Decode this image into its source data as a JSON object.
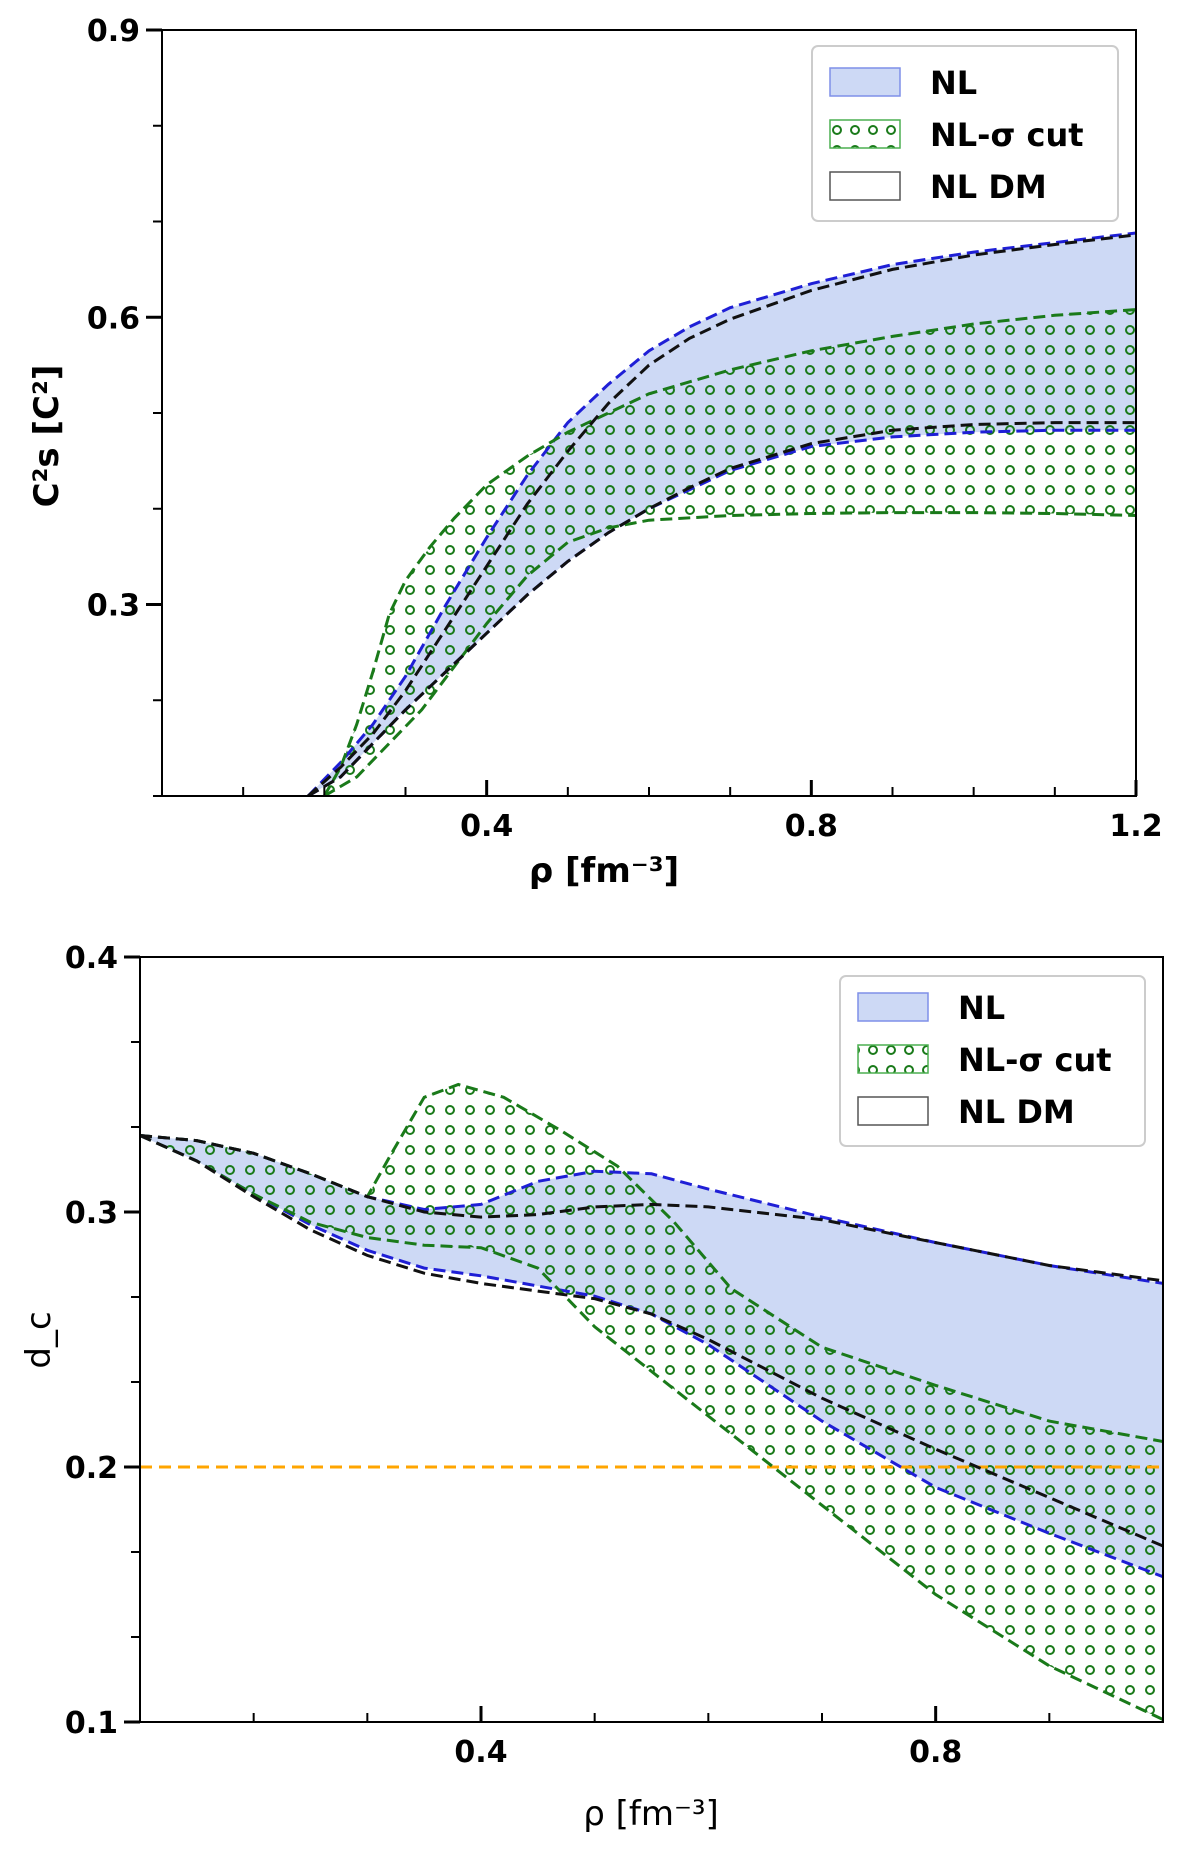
{
  "chart_data": [
    {
      "type": "area",
      "xlabel": "ρ [fm⁻³]",
      "ylabel": "C²s [C²]",
      "xlim": [
        0.0,
        1.2
      ],
      "ylim": [
        0.1,
        0.9
      ],
      "xticks": [
        {
          "v": 0.4,
          "label": "0.4"
        },
        {
          "v": 0.8,
          "label": "0.8"
        },
        {
          "v": 1.2,
          "label": "1.2"
        }
      ],
      "yticks": [
        {
          "v": 0.3,
          "label": "0.3"
        },
        {
          "v": 0.6,
          "label": "0.6"
        },
        {
          "v": 0.9,
          "label": "0.9"
        }
      ],
      "legend": [
        "NL",
        "NL-σ cut",
        "NL DM"
      ],
      "legend_position": "top-right",
      "series": [
        {
          "name": "NL",
          "upper": [
            [
              0.18,
              0.1
            ],
            [
              0.22,
              0.135
            ],
            [
              0.26,
              0.175
            ],
            [
              0.3,
              0.225
            ],
            [
              0.35,
              0.3
            ],
            [
              0.4,
              0.37
            ],
            [
              0.45,
              0.435
            ],
            [
              0.5,
              0.49
            ],
            [
              0.55,
              0.53
            ],
            [
              0.6,
              0.565
            ],
            [
              0.65,
              0.59
            ],
            [
              0.7,
              0.61
            ],
            [
              0.8,
              0.635
            ],
            [
              0.9,
              0.655
            ],
            [
              1.0,
              0.668
            ],
            [
              1.1,
              0.678
            ],
            [
              1.2,
              0.688
            ]
          ],
          "lower": [
            [
              0.18,
              0.1
            ],
            [
              0.22,
              0.12
            ],
            [
              0.26,
              0.155
            ],
            [
              0.3,
              0.19
            ],
            [
              0.35,
              0.23
            ],
            [
              0.4,
              0.27
            ],
            [
              0.45,
              0.31
            ],
            [
              0.5,
              0.345
            ],
            [
              0.55,
              0.375
            ],
            [
              0.6,
              0.4
            ],
            [
              0.65,
              0.42
            ],
            [
              0.7,
              0.44
            ],
            [
              0.8,
              0.465
            ],
            [
              0.9,
              0.475
            ],
            [
              1.0,
              0.48
            ],
            [
              1.1,
              0.482
            ],
            [
              1.2,
              0.482
            ]
          ]
        },
        {
          "name": "NL-σ cut",
          "upper": [
            [
              0.2,
              0.1
            ],
            [
              0.22,
              0.13
            ],
            [
              0.24,
              0.175
            ],
            [
              0.26,
              0.23
            ],
            [
              0.28,
              0.29
            ],
            [
              0.3,
              0.325
            ],
            [
              0.33,
              0.36
            ],
            [
              0.36,
              0.39
            ],
            [
              0.4,
              0.425
            ],
            [
              0.45,
              0.455
            ],
            [
              0.5,
              0.48
            ],
            [
              0.55,
              0.5
            ],
            [
              0.6,
              0.52
            ],
            [
              0.7,
              0.545
            ],
            [
              0.8,
              0.565
            ],
            [
              0.9,
              0.58
            ],
            [
              1.0,
              0.593
            ],
            [
              1.1,
              0.602
            ],
            [
              1.2,
              0.608
            ]
          ],
          "lower": [
            [
              0.2,
              0.1
            ],
            [
              0.24,
              0.12
            ],
            [
              0.28,
              0.155
            ],
            [
              0.32,
              0.19
            ],
            [
              0.36,
              0.235
            ],
            [
              0.4,
              0.28
            ],
            [
              0.45,
              0.33
            ],
            [
              0.5,
              0.365
            ],
            [
              0.55,
              0.38
            ],
            [
              0.6,
              0.388
            ],
            [
              0.7,
              0.393
            ],
            [
              0.8,
              0.395
            ],
            [
              0.9,
              0.396
            ],
            [
              1.0,
              0.396
            ],
            [
              1.1,
              0.395
            ],
            [
              1.2,
              0.393
            ]
          ]
        },
        {
          "name": "NL DM",
          "upper": [
            [
              0.18,
              0.1
            ],
            [
              0.22,
              0.13
            ],
            [
              0.26,
              0.165
            ],
            [
              0.3,
              0.21
            ],
            [
              0.35,
              0.275
            ],
            [
              0.4,
              0.34
            ],
            [
              0.45,
              0.405
            ],
            [
              0.5,
              0.46
            ],
            [
              0.55,
              0.51
            ],
            [
              0.6,
              0.55
            ],
            [
              0.65,
              0.578
            ],
            [
              0.7,
              0.598
            ],
            [
              0.8,
              0.628
            ],
            [
              0.9,
              0.65
            ],
            [
              1.0,
              0.665
            ],
            [
              1.1,
              0.676
            ],
            [
              1.2,
              0.686
            ]
          ],
          "lower": [
            [
              0.18,
              0.1
            ],
            [
              0.22,
              0.12
            ],
            [
              0.26,
              0.155
            ],
            [
              0.3,
              0.19
            ],
            [
              0.35,
              0.23
            ],
            [
              0.4,
              0.27
            ],
            [
              0.45,
              0.31
            ],
            [
              0.5,
              0.345
            ],
            [
              0.55,
              0.375
            ],
            [
              0.6,
              0.4
            ],
            [
              0.65,
              0.422
            ],
            [
              0.7,
              0.442
            ],
            [
              0.8,
              0.468
            ],
            [
              0.9,
              0.482
            ],
            [
              1.0,
              0.488
            ],
            [
              1.1,
              0.49
            ],
            [
              1.2,
              0.49
            ]
          ]
        }
      ]
    },
    {
      "type": "area",
      "xlabel": "ρ [fm⁻³]",
      "ylabel": "d_c",
      "xlim": [
        0.1,
        1.0
      ],
      "ylim": [
        0.1,
        0.4
      ],
      "xticks": [
        {
          "v": 0.4,
          "label": "0.4"
        },
        {
          "v": 0.8,
          "label": "0.8"
        }
      ],
      "yticks": [
        {
          "v": 0.1,
          "label": "0.1"
        },
        {
          "v": 0.2,
          "label": "0.2"
        },
        {
          "v": 0.3,
          "label": "0.3"
        },
        {
          "v": 0.4,
          "label": "0.4"
        }
      ],
      "legend": [
        "NL",
        "NL-σ cut",
        "NL DM"
      ],
      "legend_position": "top-right",
      "reference_line": {
        "y": 0.2,
        "color": "#ffa500"
      },
      "series": [
        {
          "name": "NL",
          "upper": [
            [
              0.1,
              0.33
            ],
            [
              0.15,
              0.328
            ],
            [
              0.2,
              0.323
            ],
            [
              0.25,
              0.315
            ],
            [
              0.3,
              0.306
            ],
            [
              0.35,
              0.301
            ],
            [
              0.4,
              0.303
            ],
            [
              0.45,
              0.312
            ],
            [
              0.5,
              0.316
            ],
            [
              0.55,
              0.315
            ],
            [
              0.6,
              0.309
            ],
            [
              0.7,
              0.298
            ],
            [
              0.8,
              0.288
            ],
            [
              0.9,
              0.279
            ],
            [
              1.0,
              0.272
            ]
          ],
          "lower": [
            [
              0.1,
              0.33
            ],
            [
              0.15,
              0.32
            ],
            [
              0.2,
              0.307
            ],
            [
              0.25,
              0.295
            ],
            [
              0.3,
              0.285
            ],
            [
              0.35,
              0.278
            ],
            [
              0.4,
              0.275
            ],
            [
              0.45,
              0.271
            ],
            [
              0.5,
              0.267
            ],
            [
              0.55,
              0.26
            ],
            [
              0.6,
              0.248
            ],
            [
              0.7,
              0.218
            ],
            [
              0.8,
              0.192
            ],
            [
              0.9,
              0.174
            ],
            [
              1.0,
              0.157
            ]
          ]
        },
        {
          "name": "NL-σ cut",
          "upper": [
            [
              0.1,
              0.33
            ],
            [
              0.15,
              0.328
            ],
            [
              0.2,
              0.323
            ],
            [
              0.25,
              0.315
            ],
            [
              0.3,
              0.306
            ],
            [
              0.32,
              0.322
            ],
            [
              0.35,
              0.345
            ],
            [
              0.38,
              0.35
            ],
            [
              0.42,
              0.345
            ],
            [
              0.47,
              0.332
            ],
            [
              0.52,
              0.318
            ],
            [
              0.57,
              0.296
            ],
            [
              0.62,
              0.27
            ],
            [
              0.7,
              0.247
            ],
            [
              0.8,
              0.232
            ],
            [
              0.9,
              0.218
            ],
            [
              1.0,
              0.21
            ]
          ],
          "lower": [
            [
              0.1,
              0.33
            ],
            [
              0.15,
              0.32
            ],
            [
              0.2,
              0.307
            ],
            [
              0.25,
              0.296
            ],
            [
              0.3,
              0.29
            ],
            [
              0.35,
              0.287
            ],
            [
              0.4,
              0.286
            ],
            [
              0.45,
              0.278
            ],
            [
              0.5,
              0.255
            ],
            [
              0.6,
              0.22
            ],
            [
              0.7,
              0.185
            ],
            [
              0.8,
              0.15
            ],
            [
              0.9,
              0.122
            ],
            [
              1.0,
              0.101
            ]
          ]
        },
        {
          "name": "NL DM",
          "upper": [
            [
              0.1,
              0.33
            ],
            [
              0.15,
              0.328
            ],
            [
              0.2,
              0.323
            ],
            [
              0.25,
              0.315
            ],
            [
              0.3,
              0.306
            ],
            [
              0.35,
              0.3
            ],
            [
              0.4,
              0.298
            ],
            [
              0.45,
              0.299
            ],
            [
              0.5,
              0.302
            ],
            [
              0.55,
              0.303
            ],
            [
              0.6,
              0.302
            ],
            [
              0.7,
              0.297
            ],
            [
              0.8,
              0.288
            ],
            [
              0.9,
              0.279
            ],
            [
              1.0,
              0.273
            ]
          ],
          "lower": [
            [
              0.1,
              0.33
            ],
            [
              0.15,
              0.32
            ],
            [
              0.2,
              0.306
            ],
            [
              0.25,
              0.293
            ],
            [
              0.3,
              0.283
            ],
            [
              0.35,
              0.276
            ],
            [
              0.4,
              0.272
            ],
            [
              0.45,
              0.269
            ],
            [
              0.5,
              0.266
            ],
            [
              0.55,
              0.26
            ],
            [
              0.6,
              0.25
            ],
            [
              0.7,
              0.227
            ],
            [
              0.8,
              0.207
            ],
            [
              0.9,
              0.188
            ],
            [
              1.0,
              0.169
            ]
          ]
        }
      ]
    }
  ],
  "colors": {
    "nl_fill": "#cdd9f5",
    "nl_line": "#1f1fd6",
    "sigma_line": "#1a7a1a",
    "dm_line": "#111111"
  }
}
